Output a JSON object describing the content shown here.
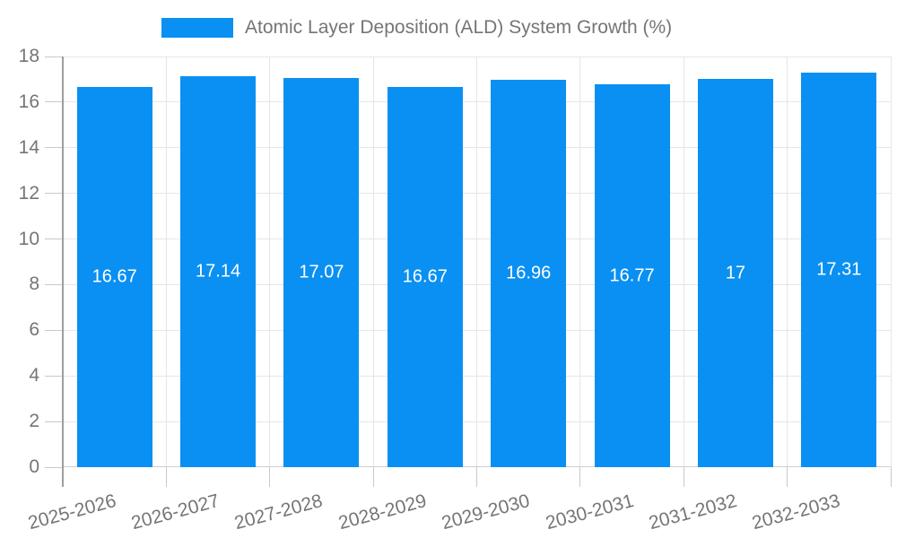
{
  "chart_data": {
    "type": "bar",
    "title": "",
    "xlabel": "",
    "ylabel": "",
    "legend": [
      "Atomic Layer Deposition (ALD) System Growth (%)"
    ],
    "legend_position": "top-center",
    "categories": [
      "2025-2026",
      "2026-2027",
      "2027-2028",
      "2028-2029",
      "2029-2030",
      "2030-2031",
      "2031-2032",
      "2032-2033"
    ],
    "series": [
      {
        "name": "Atomic Layer Deposition (ALD) System Growth (%)",
        "values": [
          16.67,
          17.14,
          17.07,
          16.67,
          16.96,
          16.77,
          17,
          17.31
        ],
        "value_labels": [
          "16.67",
          "17.14",
          "17.07",
          "16.67",
          "16.96",
          "16.77",
          "17",
          "17.31"
        ]
      }
    ],
    "ylim": [
      0,
      18
    ],
    "yticks": [
      0,
      2,
      4,
      6,
      8,
      10,
      12,
      14,
      16,
      18
    ],
    "grid": true,
    "vertical_grid": true,
    "x_label_rotation_deg": -15,
    "colors": {
      "bar": "#0a90f2",
      "value_label": "#ffffff",
      "axis_text": "#757575",
      "grid_line": "#e6e6e6",
      "tick_line": "#c9c9c9",
      "y_axis_line": "#9e9e9e",
      "x_axis_line": "#d0d0d0",
      "background": "#ffffff"
    }
  }
}
